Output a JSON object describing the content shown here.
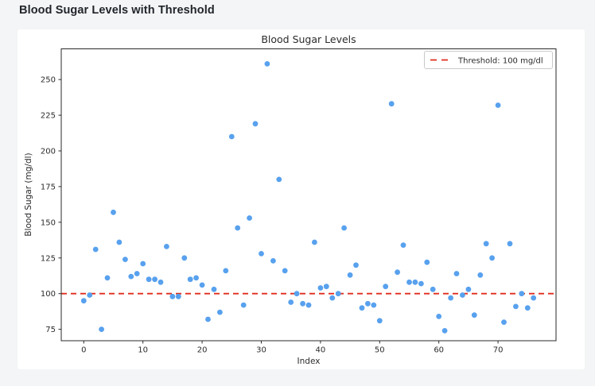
{
  "page": {
    "title": "Blood Sugar Levels with Threshold"
  },
  "chart_data": {
    "type": "scatter",
    "title": "Blood Sugar Levels",
    "xlabel": "Index",
    "ylabel": "Blood Sugar (mg/dl)",
    "xlim": [
      -3.8,
      79.8
    ],
    "ylim": [
      67,
      271.5
    ],
    "xticks": [
      0,
      10,
      20,
      30,
      40,
      50,
      60,
      70
    ],
    "yticks": [
      75,
      100,
      125,
      150,
      175,
      200,
      225,
      250
    ],
    "grid": false,
    "legend": {
      "position": "upper right",
      "label": "Threshold: 100 mg/dl"
    },
    "threshold": {
      "value": 100,
      "color": "#e02c1d",
      "style": "dashed"
    },
    "series": [
      {
        "name": "Blood Sugar",
        "marker_color": "#58a1ee",
        "x": [
          0,
          1,
          2,
          3,
          4,
          5,
          6,
          7,
          8,
          9,
          10,
          11,
          12,
          13,
          14,
          15,
          16,
          17,
          18,
          19,
          20,
          21,
          22,
          23,
          24,
          25,
          26,
          27,
          28,
          29,
          30,
          31,
          32,
          33,
          34,
          35,
          36,
          37,
          38,
          39,
          40,
          41,
          42,
          43,
          44,
          45,
          46,
          47,
          48,
          49,
          50,
          51,
          52,
          53,
          54,
          55,
          56,
          57,
          58,
          59,
          60,
          61,
          62,
          63,
          64,
          65,
          66,
          67,
          68,
          69,
          70,
          71,
          72,
          73,
          74,
          75,
          76
        ],
        "y": [
          95,
          99,
          131,
          75,
          111,
          157,
          136,
          124,
          112,
          114,
          121,
          110,
          110,
          108,
          133,
          98,
          98,
          125,
          110,
          111,
          106,
          82,
          103,
          87,
          116,
          210,
          146,
          92,
          153,
          219,
          128,
          261,
          123,
          180,
          116,
          94,
          100,
          93,
          92,
          136,
          104,
          105,
          97,
          100,
          146,
          113,
          120,
          90,
          93,
          92,
          81,
          105,
          233,
          115,
          134,
          108,
          108,
          107,
          122,
          103,
          84,
          74,
          97,
          114,
          99,
          103,
          85,
          113,
          135,
          125,
          232,
          80,
          135,
          91,
          100,
          90,
          97
        ]
      }
    ],
    "colors": {
      "page_background": "#f4f5f6",
      "figure_background": "#ffffff",
      "spine": "#2a2a2a",
      "tick_text": "#2b2b2b",
      "marker": "#58a1ee",
      "threshold_red": "#e02c1d"
    }
  }
}
